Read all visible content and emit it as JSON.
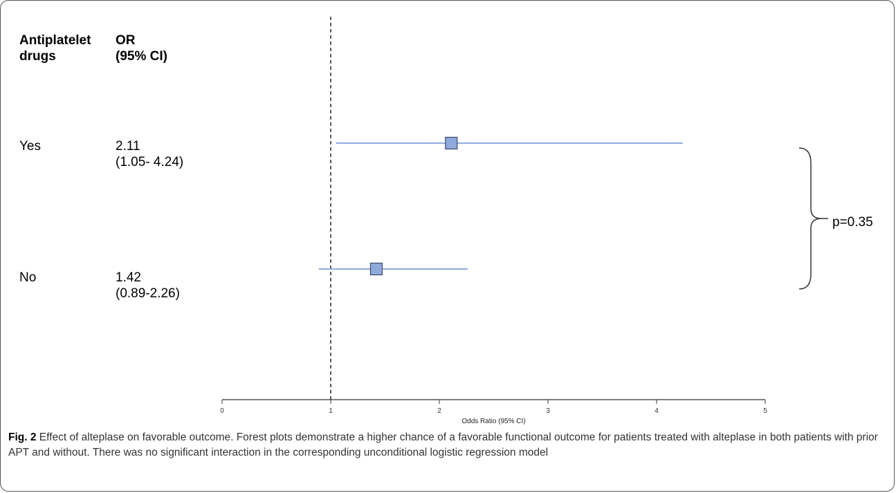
{
  "table": {
    "col1_header": [
      "Antiplatelet",
      "drugs"
    ],
    "col2_header": [
      "OR",
      "(95% CI)"
    ],
    "rows": [
      {
        "label": "Yes",
        "or": "2.11",
        "ci": "(1.05- 4.24)"
      },
      {
        "label": "No",
        "or": "1.42",
        "ci": "(0.89-2.26)"
      }
    ]
  },
  "chart_data": {
    "type": "scatter",
    "xlabel": "Odds Ratio (95% CI)",
    "xlim": [
      0,
      5
    ],
    "xticks": [
      0,
      1,
      2,
      3,
      4,
      5
    ],
    "reference_line": 1,
    "points": [
      {
        "group": "Yes",
        "or": 2.11,
        "ci_low": 1.05,
        "ci_high": 4.24
      },
      {
        "group": "No",
        "or": 1.42,
        "ci_low": 0.89,
        "ci_high": 2.26
      }
    ],
    "interaction_annotation": "p=0.35"
  },
  "colors": {
    "marker_fill": "#8fa9dc",
    "marker_stroke": "#3a4a6a",
    "ci_line": "#8fa9dc",
    "axis": "#333333"
  },
  "caption": {
    "label": "Fig. 2",
    "text": "Effect of alteplase on favorable outcome. Forest plots demonstrate a higher chance of a favorable functional outcome for patients treated with alteplase in both patients with prior APT and without. There was no significant interaction in the corresponding unconditional logistic regression model"
  }
}
